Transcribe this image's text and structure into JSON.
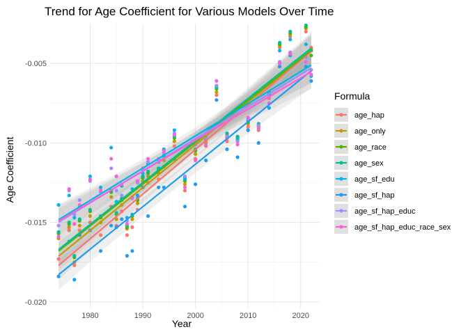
{
  "chart_data": {
    "type": "scatter",
    "title": "Trend for Age Coefficient for Various Models Over Time",
    "xlabel": "Year",
    "ylabel": "Age Coefficient",
    "xlim": [
      1972.4,
      2023.6
    ],
    "ylim": [
      -0.0204,
      -0.0025
    ],
    "xticks": [
      1980,
      1990,
      2000,
      2010,
      2020
    ],
    "yticks": [
      -0.02,
      -0.015,
      -0.01,
      -0.005
    ],
    "ytick_labels": [
      "-0.020",
      "-0.015",
      "-0.010",
      "-0.005"
    ],
    "grid": true,
    "legend": {
      "title": "Formula",
      "position": "right"
    },
    "trend": "linear fit with confidence band per series",
    "series": [
      {
        "name": "age_hap",
        "color": "#F8766D",
        "x": [
          1974,
          1976,
          1977,
          1978,
          1980,
          1982,
          1984,
          1985,
          1986,
          1987,
          1988,
          1989,
          1990,
          1991,
          1993,
          1994,
          1996,
          1998,
          2000,
          2002,
          2004,
          2006,
          2008,
          2010,
          2012,
          2014,
          2016,
          2018,
          2021,
          2022
        ],
        "y": [
          -0.0173,
          -0.0155,
          -0.0177,
          -0.0155,
          -0.015,
          -0.0158,
          -0.014,
          -0.0152,
          -0.0143,
          -0.0158,
          -0.0153,
          -0.0142,
          -0.0128,
          -0.0125,
          -0.0123,
          -0.0115,
          -0.0102,
          -0.013,
          -0.011,
          -0.0102,
          -0.007,
          -0.0099,
          -0.0101,
          -0.009,
          -0.0092,
          -0.0072,
          -0.004,
          -0.0033,
          -0.003,
          -0.004
        ]
      },
      {
        "name": "age_only",
        "color": "#C49A00",
        "x": [
          1974,
          1976,
          1977,
          1978,
          1980,
          1982,
          1984,
          1985,
          1986,
          1987,
          1988,
          1989,
          1990,
          1991,
          1993,
          1994,
          1996,
          1998,
          2000,
          2002,
          2004,
          2006,
          2008,
          2010,
          2012,
          2014,
          2016,
          2018,
          2021,
          2022
        ],
        "y": [
          -0.016,
          -0.0153,
          -0.0175,
          -0.0152,
          -0.0146,
          -0.015,
          -0.0134,
          -0.0148,
          -0.0139,
          -0.0154,
          -0.0148,
          -0.0138,
          -0.0124,
          -0.0121,
          -0.0119,
          -0.0111,
          -0.0099,
          -0.0126,
          -0.0107,
          -0.01,
          -0.0068,
          -0.0097,
          -0.0099,
          -0.0088,
          -0.009,
          -0.007,
          -0.0039,
          -0.0032,
          -0.0028,
          -0.0041
        ]
      },
      {
        "name": "age_race",
        "color": "#53B400",
        "x": [
          1974,
          1976,
          1977,
          1978,
          1980,
          1982,
          1984,
          1985,
          1986,
          1987,
          1988,
          1989,
          1990,
          1991,
          1993,
          1994,
          1996,
          1998,
          2000,
          2002,
          2004,
          2006,
          2008,
          2010,
          2012,
          2014,
          2016,
          2018,
          2021,
          2022
        ],
        "y": [
          -0.0157,
          -0.0151,
          -0.0172,
          -0.0149,
          -0.0143,
          -0.0147,
          -0.0131,
          -0.0145,
          -0.0136,
          -0.0153,
          -0.0146,
          -0.0136,
          -0.0122,
          -0.0119,
          -0.0117,
          -0.0109,
          -0.0097,
          -0.0124,
          -0.0105,
          -0.0098,
          -0.0066,
          -0.0095,
          -0.0097,
          -0.0087,
          -0.0089,
          -0.0069,
          -0.0038,
          -0.0031,
          -0.0027,
          -0.0045
        ]
      },
      {
        "name": "age_sex",
        "color": "#00C094",
        "x": [
          1974,
          1976,
          1977,
          1978,
          1980,
          1982,
          1984,
          1985,
          1986,
          1987,
          1988,
          1989,
          1990,
          1991,
          1993,
          1994,
          1996,
          1998,
          2000,
          2002,
          2004,
          2006,
          2008,
          2010,
          2012,
          2014,
          2016,
          2018,
          2021,
          2022
        ],
        "y": [
          -0.0156,
          -0.015,
          -0.0171,
          -0.0148,
          -0.0142,
          -0.0146,
          -0.013,
          -0.0144,
          -0.0135,
          -0.0152,
          -0.0145,
          -0.0135,
          -0.0121,
          -0.0118,
          -0.0116,
          -0.0108,
          -0.0096,
          -0.0123,
          -0.0104,
          -0.0097,
          -0.0065,
          -0.0094,
          -0.0096,
          -0.0086,
          -0.0088,
          -0.0068,
          -0.0037,
          -0.003,
          -0.0026,
          -0.0042
        ]
      },
      {
        "name": "age_sf_edu",
        "color": "#00B6EB",
        "x": [
          1974,
          1976,
          1977,
          1978,
          1980,
          1982,
          1984,
          1985,
          1986,
          1987,
          1988,
          1989,
          1990,
          1991,
          1993,
          1994,
          1996,
          1998,
          2000,
          2002,
          2004,
          2006,
          2008,
          2010,
          2012,
          2014,
          2016,
          2018,
          2021,
          2022
        ],
        "y": [
          -0.0139,
          -0.0133,
          -0.0147,
          -0.014,
          -0.0121,
          -0.0128,
          -0.0103,
          -0.0137,
          -0.0127,
          -0.0147,
          -0.0129,
          -0.0125,
          -0.0119,
          -0.0113,
          -0.0112,
          -0.0104,
          -0.0092,
          -0.0122,
          -0.0101,
          -0.0096,
          -0.0064,
          -0.0096,
          -0.0098,
          -0.0085,
          -0.0089,
          -0.007,
          -0.0042,
          -0.0035,
          -0.0038,
          -0.0058
        ]
      },
      {
        "name": "age_sf_hap",
        "color": "#1E9CF1",
        "x": [
          1974,
          1976,
          1977,
          1978,
          1980,
          1982,
          1984,
          1985,
          1986,
          1987,
          1988,
          1989,
          1990,
          1991,
          1993,
          1994,
          1996,
          1998,
          2000,
          2002,
          2004,
          2006,
          2008,
          2010,
          2012,
          2014,
          2016,
          2018,
          2021,
          2022
        ],
        "y": [
          -0.0184,
          -0.0162,
          -0.0186,
          -0.0158,
          -0.0155,
          -0.0168,
          -0.0152,
          -0.0153,
          -0.0148,
          -0.0171,
          -0.0168,
          -0.0133,
          -0.0128,
          -0.0146,
          -0.0128,
          -0.0128,
          -0.011,
          -0.014,
          -0.0126,
          -0.0111,
          -0.0073,
          -0.0104,
          -0.0109,
          -0.0092,
          -0.01,
          -0.0078,
          -0.0052,
          -0.0045,
          -0.0052,
          -0.0061
        ]
      },
      {
        "name": "age_sf_hap_educ",
        "color": "#A58AFF",
        "x": [
          1974,
          1976,
          1977,
          1978,
          1980,
          1982,
          1984,
          1985,
          1986,
          1987,
          1988,
          1989,
          1990,
          1991,
          1993,
          1994,
          1996,
          1998,
          2000,
          2002,
          2004,
          2006,
          2008,
          2010,
          2012,
          2014,
          2016,
          2018,
          2021,
          2022
        ],
        "y": [
          -0.0152,
          -0.013,
          -0.0145,
          -0.0136,
          -0.0124,
          -0.0131,
          -0.0116,
          -0.013,
          -0.0133,
          -0.0149,
          -0.0135,
          -0.0125,
          -0.0117,
          -0.0112,
          -0.0111,
          -0.0106,
          -0.0094,
          -0.0121,
          -0.0101,
          -0.0097,
          -0.0064,
          -0.0096,
          -0.0099,
          -0.0085,
          -0.0089,
          -0.0071,
          -0.0049,
          -0.0043,
          -0.0046,
          -0.0054
        ]
      },
      {
        "name": "age_sf_hap_educ_race_sex",
        "color": "#FB61D7",
        "x": [
          1974,
          1976,
          1977,
          1978,
          1980,
          1982,
          1984,
          1985,
          1986,
          1987,
          1988,
          1989,
          1990,
          1991,
          1993,
          1994,
          1996,
          1998,
          2000,
          2002,
          2004,
          2006,
          2008,
          2010,
          2012,
          2014,
          2016,
          2018,
          2021,
          2022
        ],
        "y": [
          -0.0159,
          -0.0129,
          -0.0151,
          -0.0139,
          -0.0123,
          -0.013,
          -0.011,
          -0.0121,
          -0.0126,
          -0.0151,
          -0.0134,
          -0.0124,
          -0.0116,
          -0.011,
          -0.011,
          -0.0105,
          -0.0095,
          -0.0128,
          -0.0111,
          -0.0101,
          -0.0061,
          -0.0097,
          -0.0101,
          -0.0084,
          -0.0091,
          -0.0075,
          -0.005,
          -0.0044,
          -0.0049,
          -0.0057
        ]
      }
    ]
  }
}
